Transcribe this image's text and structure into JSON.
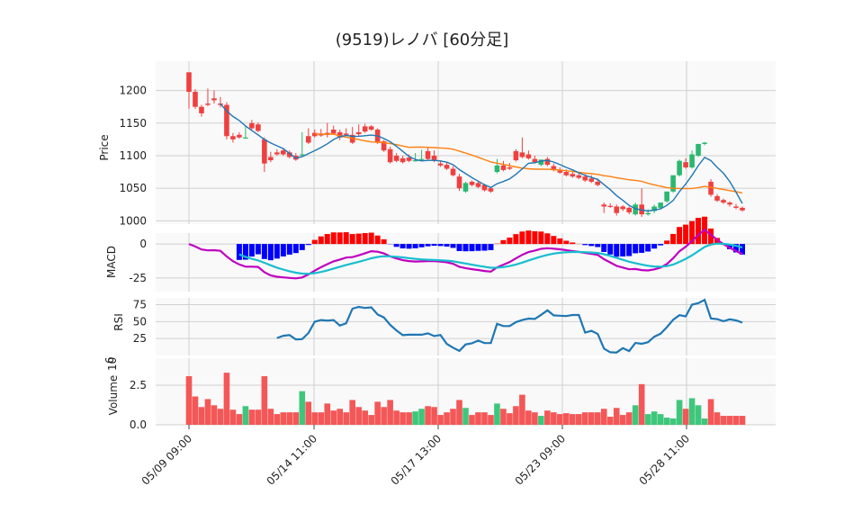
{
  "chart_data": {
    "type": "candlestick",
    "title": "(9519)レノバ [60分足]",
    "x_tick_labels": [
      "05/09 09:00",
      "05/14 11:00",
      "05/17 13:00",
      "05/23 09:00",
      "05/28 11:00"
    ],
    "panels": {
      "price": {
        "ylabel": "Price",
        "ylim": [
          995,
          1245
        ],
        "yticks": [
          1000,
          1050,
          1100,
          1150,
          1200
        ],
        "up_color": "#29b86f",
        "down_color": "#ef4040",
        "candles": [
          [
            1228,
            1225,
            1198,
            1172
          ],
          [
            1198,
            1202,
            1175,
            1172
          ],
          [
            1175,
            1178,
            1165,
            1160
          ],
          [
            1180,
            1203,
            1178,
            1176
          ],
          [
            1188,
            1200,
            1185,
            1180
          ],
          [
            1180,
            1190,
            1178,
            1174
          ],
          [
            1178,
            1182,
            1130,
            1125
          ],
          [
            1130,
            1135,
            1125,
            1120
          ],
          [
            1132,
            1136,
            1128,
            1126
          ],
          [
            1128,
            1145,
            1128,
            1126
          ],
          [
            1150,
            1155,
            1142,
            1140
          ],
          [
            1148,
            1151,
            1138,
            1136
          ],
          [
            1125,
            1128,
            1088,
            1075
          ],
          [
            1098,
            1106,
            1093,
            1090
          ],
          [
            1105,
            1110,
            1102,
            1100
          ],
          [
            1108,
            1112,
            1102,
            1100
          ],
          [
            1105,
            1108,
            1098,
            1096
          ],
          [
            1100,
            1104,
            1094,
            1092
          ],
          [
            1102,
            1136,
            1102,
            1100
          ],
          [
            1130,
            1142,
            1120,
            1118
          ],
          [
            1135,
            1140,
            1130,
            1128
          ],
          [
            1133,
            1141,
            1131,
            1129
          ],
          [
            1135,
            1150,
            1132,
            1128
          ],
          [
            1140,
            1146,
            1134,
            1132
          ],
          [
            1136,
            1140,
            1128,
            1124
          ],
          [
            1134,
            1142,
            1132,
            1130
          ],
          [
            1132,
            1144,
            1120,
            1118
          ],
          [
            1136,
            1148,
            1133,
            1130
          ],
          [
            1145,
            1149,
            1137,
            1135
          ],
          [
            1145,
            1147,
            1140,
            1138
          ],
          [
            1140,
            1142,
            1120,
            1118
          ],
          [
            1122,
            1124,
            1108,
            1106
          ],
          [
            1110,
            1114,
            1090,
            1088
          ],
          [
            1100,
            1104,
            1092,
            1090
          ],
          [
            1096,
            1100,
            1090,
            1088
          ],
          [
            1097,
            1102,
            1092,
            1090
          ],
          [
            1093,
            1104,
            1093,
            1091
          ],
          [
            1095,
            1109,
            1095,
            1093
          ],
          [
            1107,
            1112,
            1095,
            1093
          ],
          [
            1100,
            1108,
            1092,
            1090
          ],
          [
            1088,
            1092,
            1085,
            1083
          ],
          [
            1086,
            1090,
            1080,
            1078
          ],
          [
            1080,
            1084,
            1070,
            1068
          ],
          [
            1068,
            1072,
            1050,
            1046
          ],
          [
            1045,
            1060,
            1058,
            1043
          ],
          [
            1060,
            1062,
            1055,
            1053
          ],
          [
            1058,
            1062,
            1052,
            1050
          ],
          [
            1055,
            1057,
            1047,
            1045
          ],
          [
            1050,
            1052,
            1045,
            1043
          ],
          [
            1075,
            1095,
            1085,
            1073
          ],
          [
            1085,
            1092,
            1078,
            1076
          ],
          [
            1082,
            1089,
            1080,
            1078
          ],
          [
            1107,
            1110,
            1093,
            1091
          ],
          [
            1105,
            1128,
            1098,
            1096
          ],
          [
            1102,
            1108,
            1096,
            1094
          ],
          [
            1095,
            1100,
            1090,
            1088
          ],
          [
            1086,
            1092,
            1094,
            1084
          ],
          [
            1095,
            1098,
            1086,
            1084
          ],
          [
            1084,
            1088,
            1078,
            1076
          ],
          [
            1077,
            1082,
            1074,
            1072
          ],
          [
            1075,
            1079,
            1070,
            1068
          ],
          [
            1072,
            1076,
            1068,
            1066
          ],
          [
            1070,
            1074,
            1066,
            1064
          ],
          [
            1068,
            1072,
            1062,
            1060
          ],
          [
            1065,
            1070,
            1060,
            1058
          ],
          [
            1060,
            1065,
            1055,
            1053
          ],
          [
            1025,
            1028,
            1022,
            1012
          ],
          [
            1023,
            1027,
            1022,
            1020
          ],
          [
            1022,
            1025,
            1012,
            1008
          ],
          [
            1022,
            1024,
            1018,
            1015
          ],
          [
            1020,
            1022,
            1013,
            1010
          ],
          [
            1010,
            1028,
            1025,
            1008
          ],
          [
            1025,
            1050,
            1010,
            1006
          ],
          [
            1010,
            1018,
            1012,
            1008
          ],
          [
            1015,
            1025,
            1022,
            1012
          ],
          [
            1020,
            1028,
            1028,
            1018
          ],
          [
            1030,
            1034,
            1045,
            1028
          ],
          [
            1045,
            1048,
            1070,
            1043
          ],
          [
            1070,
            1094,
            1092,
            1068
          ],
          [
            1090,
            1096,
            1082,
            1080
          ],
          [
            1082,
            1108,
            1102,
            1080
          ],
          [
            1100,
            1118,
            1118,
            1098
          ],
          [
            1118,
            1121,
            1120,
            1116
          ],
          [
            1060,
            1064,
            1040,
            1037
          ],
          [
            1038,
            1041,
            1031,
            1029
          ],
          [
            1032,
            1034,
            1028,
            1026
          ],
          [
            1028,
            1030,
            1025,
            1022
          ],
          [
            1022,
            1026,
            1020,
            1018
          ],
          [
            1020,
            1022,
            1016,
            1014
          ]
        ]
      },
      "macd": {
        "ylabel": "MACD",
        "yticks": [
          0,
          -25
        ]
      },
      "rsi": {
        "ylabel": "RSI",
        "yticks": [
          25,
          50,
          75
        ]
      },
      "volume": {
        "ylabel": "Volume",
        "exponent_label": "10",
        "exponent": "6",
        "yticks": [
          "0.0",
          "2.5"
        ]
      }
    }
  }
}
